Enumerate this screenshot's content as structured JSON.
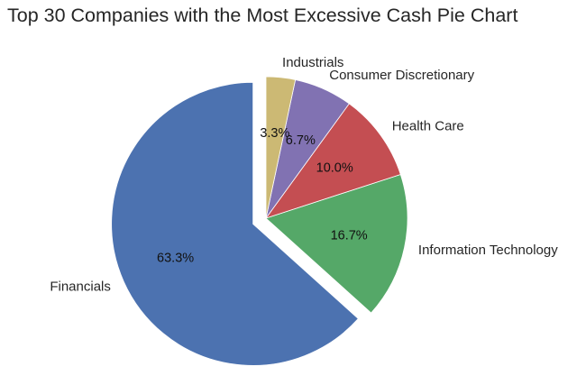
{
  "chart_data": {
    "type": "pie",
    "title": "Top 30 Companies with the Most Excessive Cash Pie Chart",
    "categories": [
      "Financials",
      "Information Technology",
      "Health Care",
      "Consumer Discretionary",
      "Industrials"
    ],
    "values": [
      19,
      5,
      3,
      2,
      1
    ],
    "percent_labels": [
      "63.3%",
      "16.7%",
      "10.0%",
      "6.7%",
      "3.3%"
    ],
    "colors": [
      "#4c72b0",
      "#55a868",
      "#c44e52",
      "#8172b2",
      "#ccb974"
    ],
    "exploded": [
      "Financials"
    ],
    "start_angle_deg": 90,
    "direction": "counterclockwise",
    "legend": "none"
  }
}
